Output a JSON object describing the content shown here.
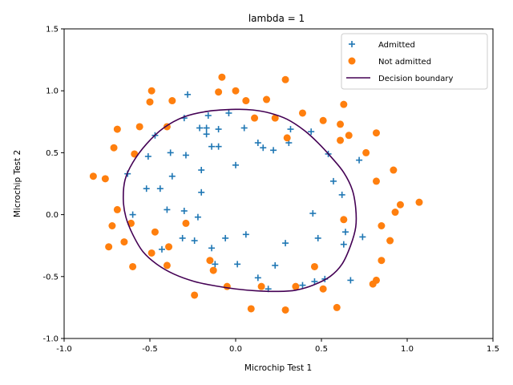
{
  "chart_data": {
    "type": "scatter",
    "title": "lambda = 1",
    "xlabel": "Microchip Test 1",
    "ylabel": "Microchip Test 2",
    "xlim": [
      -1.0,
      1.5
    ],
    "ylim": [
      -1.0,
      1.5
    ],
    "xticks": [
      "-1.0",
      "-0.5",
      "0.0",
      "0.5",
      "1.0",
      "1.5"
    ],
    "yticks": [
      "-1.0",
      "-0.5",
      "0.0",
      "0.5",
      "1.0",
      "1.5"
    ],
    "grid": false,
    "legend_position": "top-right",
    "colors": {
      "admitted": "#1f77b4",
      "not_admitted": "#ff7f0e",
      "boundary": "#440154"
    },
    "series": [
      {
        "name": "Admitted",
        "marker": "plus",
        "points": [
          [
            -0.28,
            0.97
          ],
          [
            -0.04,
            0.82
          ],
          [
            -0.16,
            0.8
          ],
          [
            -0.3,
            0.78
          ],
          [
            -0.47,
            0.64
          ],
          [
            -0.21,
            0.7
          ],
          [
            -0.17,
            0.7
          ],
          [
            -0.1,
            0.69
          ],
          [
            0.05,
            0.7
          ],
          [
            0.32,
            0.69
          ],
          [
            0.44,
            0.67
          ],
          [
            -0.17,
            0.65
          ],
          [
            0.13,
            0.58
          ],
          [
            0.31,
            0.58
          ],
          [
            -0.14,
            0.55
          ],
          [
            -0.1,
            0.55
          ],
          [
            0.16,
            0.54
          ],
          [
            0.22,
            0.52
          ],
          [
            -0.38,
            0.5
          ],
          [
            0.54,
            0.49
          ],
          [
            -0.51,
            0.47
          ],
          [
            -0.29,
            0.48
          ],
          [
            0.72,
            0.44
          ],
          [
            0.0,
            0.4
          ],
          [
            -0.2,
            0.36
          ],
          [
            -0.63,
            0.33
          ],
          [
            -0.37,
            0.31
          ],
          [
            0.57,
            0.27
          ],
          [
            -0.52,
            0.21
          ],
          [
            -0.44,
            0.21
          ],
          [
            -0.2,
            0.18
          ],
          [
            0.62,
            0.16
          ],
          [
            -0.4,
            0.04
          ],
          [
            -0.3,
            0.03
          ],
          [
            -0.6,
            0.0
          ],
          [
            0.45,
            0.01
          ],
          [
            -0.22,
            -0.02
          ],
          [
            0.64,
            -0.14
          ],
          [
            0.06,
            -0.16
          ],
          [
            0.74,
            -0.18
          ],
          [
            -0.31,
            -0.19
          ],
          [
            -0.06,
            -0.19
          ],
          [
            0.48,
            -0.19
          ],
          [
            -0.24,
            -0.21
          ],
          [
            0.29,
            -0.23
          ],
          [
            0.63,
            -0.24
          ],
          [
            -0.14,
            -0.27
          ],
          [
            -0.43,
            -0.28
          ],
          [
            -0.12,
            -0.4
          ],
          [
            0.01,
            -0.4
          ],
          [
            0.23,
            -0.41
          ],
          [
            0.13,
            -0.51
          ],
          [
            0.52,
            -0.52
          ],
          [
            0.67,
            -0.53
          ],
          [
            0.46,
            -0.54
          ],
          [
            0.39,
            -0.57
          ],
          [
            0.19,
            -0.6
          ]
        ]
      },
      {
        "name": "Not admitted",
        "marker": "circle",
        "points": [
          [
            -0.08,
            1.11
          ],
          [
            0.29,
            1.09
          ],
          [
            -0.49,
            1.0
          ],
          [
            -0.1,
            0.99
          ],
          [
            0.0,
            1.0
          ],
          [
            -0.5,
            0.91
          ],
          [
            -0.37,
            0.92
          ],
          [
            0.06,
            0.92
          ],
          [
            0.18,
            0.93
          ],
          [
            0.63,
            0.89
          ],
          [
            0.39,
            0.82
          ],
          [
            0.11,
            0.78
          ],
          [
            0.23,
            0.78
          ],
          [
            0.51,
            0.76
          ],
          [
            0.61,
            0.73
          ],
          [
            -0.56,
            0.71
          ],
          [
            -0.4,
            0.71
          ],
          [
            -0.69,
            0.69
          ],
          [
            0.82,
            0.66
          ],
          [
            0.66,
            0.64
          ],
          [
            0.3,
            0.62
          ],
          [
            0.61,
            0.6
          ],
          [
            -0.71,
            0.54
          ],
          [
            -0.59,
            0.49
          ],
          [
            0.76,
            0.5
          ],
          [
            0.92,
            0.36
          ],
          [
            -0.83,
            0.31
          ],
          [
            -0.76,
            0.29
          ],
          [
            0.82,
            0.27
          ],
          [
            0.96,
            0.08
          ],
          [
            1.07,
            0.1
          ],
          [
            -0.69,
            0.04
          ],
          [
            0.93,
            0.02
          ],
          [
            0.63,
            -0.04
          ],
          [
            -0.29,
            -0.07
          ],
          [
            -0.61,
            -0.07
          ],
          [
            -0.72,
            -0.09
          ],
          [
            0.85,
            -0.09
          ],
          [
            -0.47,
            -0.14
          ],
          [
            0.9,
            -0.21
          ],
          [
            -0.65,
            -0.22
          ],
          [
            -0.39,
            -0.26
          ],
          [
            -0.74,
            -0.26
          ],
          [
            -0.49,
            -0.31
          ],
          [
            -0.15,
            -0.37
          ],
          [
            0.85,
            -0.37
          ],
          [
            -0.4,
            -0.41
          ],
          [
            -0.6,
            -0.42
          ],
          [
            0.46,
            -0.42
          ],
          [
            -0.13,
            -0.45
          ],
          [
            0.82,
            -0.53
          ],
          [
            0.8,
            -0.56
          ],
          [
            -0.05,
            -0.58
          ],
          [
            0.15,
            -0.58
          ],
          [
            0.35,
            -0.58
          ],
          [
            0.51,
            -0.6
          ],
          [
            -0.24,
            -0.65
          ],
          [
            0.59,
            -0.75
          ],
          [
            0.09,
            -0.76
          ],
          [
            0.29,
            -0.77
          ]
        ]
      },
      {
        "name": "Decision boundary",
        "marker": "line",
        "points": [
          [
            0.0,
            0.85
          ],
          [
            0.1,
            0.845
          ],
          [
            0.2,
            0.82
          ],
          [
            0.3,
            0.77
          ],
          [
            0.4,
            0.68
          ],
          [
            0.48,
            0.58
          ],
          [
            0.56,
            0.46
          ],
          [
            0.63,
            0.34
          ],
          [
            0.68,
            0.2
          ],
          [
            0.7,
            0.05
          ],
          [
            0.7,
            -0.1
          ],
          [
            0.67,
            -0.25
          ],
          [
            0.62,
            -0.4
          ],
          [
            0.55,
            -0.5
          ],
          [
            0.45,
            -0.57
          ],
          [
            0.35,
            -0.61
          ],
          [
            0.25,
            -0.62
          ],
          [
            0.12,
            -0.615
          ],
          [
            0.0,
            -0.6
          ],
          [
            -0.12,
            -0.575
          ],
          [
            -0.24,
            -0.54
          ],
          [
            -0.36,
            -0.48
          ],
          [
            -0.46,
            -0.4
          ],
          [
            -0.54,
            -0.3
          ],
          [
            -0.6,
            -0.16
          ],
          [
            -0.64,
            -0.02
          ],
          [
            -0.655,
            0.12
          ],
          [
            -0.645,
            0.28
          ],
          [
            -0.6,
            0.42
          ],
          [
            -0.52,
            0.57
          ],
          [
            -0.42,
            0.7
          ],
          [
            -0.3,
            0.79
          ],
          [
            -0.16,
            0.835
          ],
          [
            0.0,
            0.85
          ]
        ]
      }
    ]
  }
}
